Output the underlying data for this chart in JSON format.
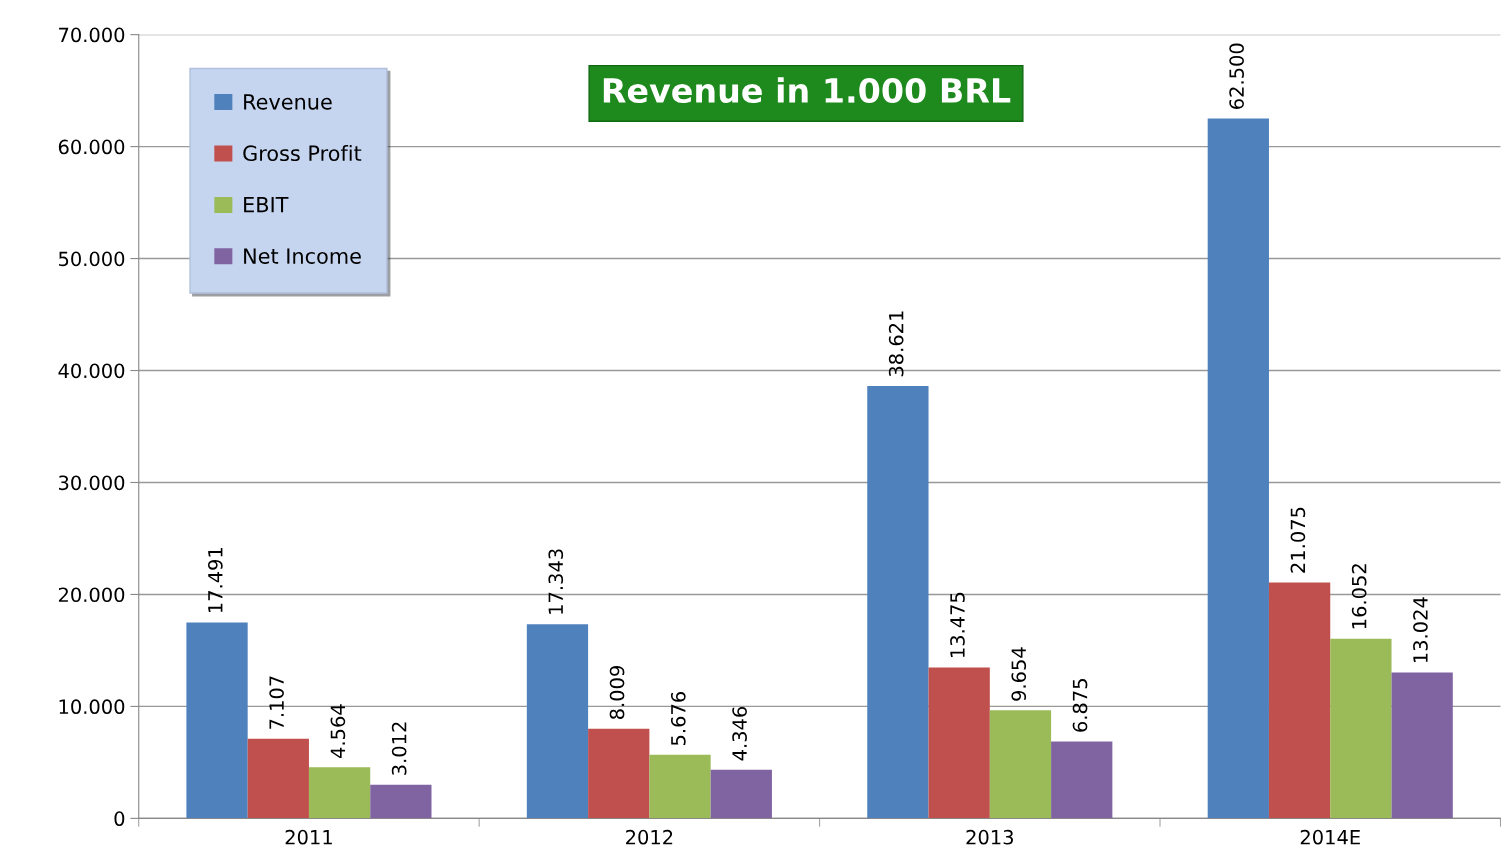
{
  "chart_data": {
    "type": "bar",
    "title": "Revenue in 1.000 BRL",
    "categories": [
      "2011",
      "2012",
      "2013",
      "2014E"
    ],
    "series": [
      {
        "name": "Revenue",
        "color": "#4f81bd",
        "values": [
          17491,
          17343,
          38621,
          62500
        ],
        "value_labels": [
          "17.491",
          "17.343",
          "38.621",
          "62.500"
        ]
      },
      {
        "name": "Gross Profit",
        "color": "#c0504d",
        "values": [
          7107,
          8009,
          13475,
          21075
        ],
        "value_labels": [
          "7.107",
          "8.009",
          "13.475",
          "21.075"
        ]
      },
      {
        "name": "EBIT",
        "color": "#9bbb59",
        "values": [
          4564,
          5676,
          9654,
          16052
        ],
        "value_labels": [
          "4.564",
          "5.676",
          "9.654",
          "16.052"
        ]
      },
      {
        "name": "Net Income",
        "color": "#8064a2",
        "values": [
          3012,
          4346,
          6875,
          13024
        ],
        "value_labels": [
          "3.012",
          "4.346",
          "6.875",
          "13.024"
        ]
      }
    ],
    "ylim": [
      0,
      70000
    ],
    "yticks": [
      {
        "value": 0,
        "label": "0"
      },
      {
        "value": 10000,
        "label": "10.000"
      },
      {
        "value": 20000,
        "label": "20.000"
      },
      {
        "value": 30000,
        "label": "30.000"
      },
      {
        "value": 40000,
        "label": "40.000"
      },
      {
        "value": 50000,
        "label": "50.000"
      },
      {
        "value": 60000,
        "label": "60.000"
      },
      {
        "value": 70000,
        "label": "70.000"
      }
    ],
    "grid": "y",
    "legend": "top left"
  }
}
